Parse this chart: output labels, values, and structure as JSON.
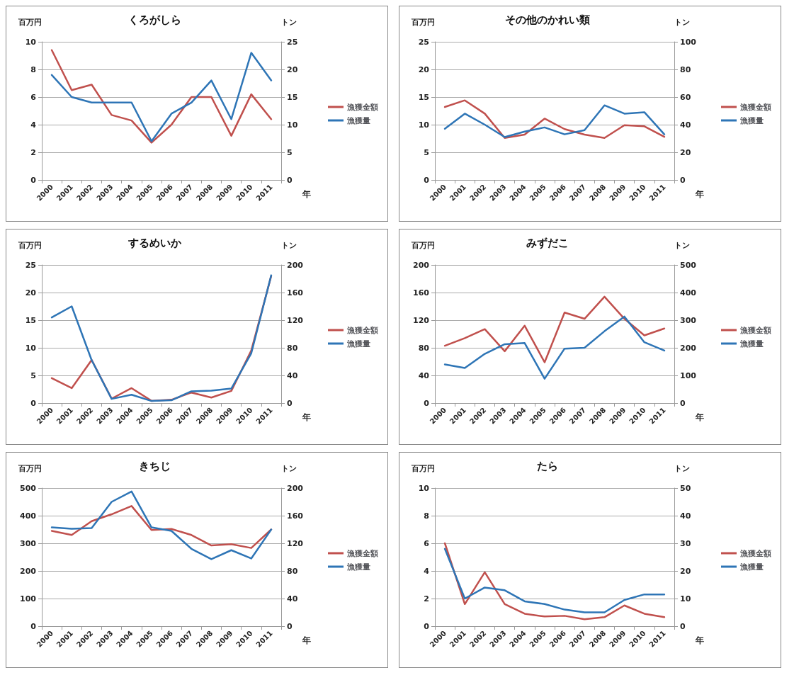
{
  "chart_data": [
    {
      "type": "line",
      "title": "くろがしら",
      "ylabel": "百万円",
      "y2label": "トン",
      "xlabel": "年",
      "categories": [
        "2000",
        "2001",
        "2002",
        "2003",
        "2004",
        "2005",
        "2006",
        "2007",
        "2008",
        "2009",
        "2010",
        "2011"
      ],
      "ylim": [
        0,
        10
      ],
      "yticks": [
        0,
        2,
        4,
        6,
        8,
        10
      ],
      "y2lim": [
        0,
        25
      ],
      "y2ticks": [
        0,
        5,
        10,
        15,
        20,
        25
      ],
      "grid": "y",
      "legend": "right",
      "marker": "none",
      "line_style": "solid",
      "series": [
        {
          "name": "漁獲金額",
          "color": "#c0504d",
          "values": [
            9.4,
            6.5,
            6.9,
            4.7,
            4.3,
            2.7,
            4.0,
            6.0,
            6.0,
            3.2,
            6.2,
            4.4
          ]
        },
        {
          "name": "漁獲量",
          "color": "#2e75b6",
          "axis": "y2",
          "values": [
            19,
            15,
            14,
            14,
            14,
            7,
            12,
            14,
            18,
            11,
            23,
            18
          ]
        }
      ]
    },
    {
      "type": "line",
      "title": "その他のかれい類",
      "ylabel": "百万円",
      "y2label": "トン",
      "xlabel": "年",
      "categories": [
        "2000",
        "2001",
        "2002",
        "2003",
        "2004",
        "2005",
        "2006",
        "2007",
        "2008",
        "2009",
        "2010",
        "2011"
      ],
      "ylim": [
        0,
        25
      ],
      "yticks": [
        0,
        5,
        10,
        15,
        20,
        25
      ],
      "y2lim": [
        0,
        100
      ],
      "y2ticks": [
        0,
        20,
        40,
        60,
        80,
        100
      ],
      "grid": "y",
      "legend": "right",
      "marker": "none",
      "line_style": "solid",
      "series": [
        {
          "name": "漁獲金額",
          "color": "#c0504d",
          "values": [
            13.2,
            14.4,
            12,
            7.6,
            8.2,
            11.1,
            9.2,
            8.2,
            7.6,
            9.9,
            9.7,
            7.8
          ]
        },
        {
          "name": "漁獲量",
          "color": "#2e75b6",
          "axis": "y2",
          "values": [
            37,
            48,
            40,
            31,
            35,
            38,
            33,
            36,
            54,
            48,
            49,
            33
          ]
        }
      ]
    },
    {
      "type": "line",
      "title": "するめいか",
      "ylabel": "百万円",
      "y2label": "トン",
      "xlabel": "年",
      "categories": [
        "2000",
        "2001",
        "2002",
        "2003",
        "2004",
        "2005",
        "2006",
        "2007",
        "2008",
        "2009",
        "2010",
        "2011"
      ],
      "ylim": [
        0,
        25
      ],
      "yticks": [
        0,
        5,
        10,
        15,
        20,
        25
      ],
      "y2lim": [
        0,
        200
      ],
      "y2ticks": [
        0,
        40,
        80,
        120,
        160,
        200
      ],
      "grid": "y",
      "legend": "right",
      "marker": "none",
      "line_style": "solid",
      "series": [
        {
          "name": "漁獲金額",
          "color": "#c0504d",
          "values": [
            4.5,
            2.7,
            7.8,
            0.8,
            2.7,
            0.4,
            0.6,
            1.9,
            1.0,
            2.2,
            9.5,
            23
          ]
        },
        {
          "name": "漁獲量",
          "color": "#2e75b6",
          "axis": "y2",
          "values": [
            124,
            140,
            62,
            6,
            12,
            3,
            4,
            17,
            18,
            21,
            72,
            185
          ]
        }
      ]
    },
    {
      "type": "line",
      "title": "みずだこ",
      "ylabel": "百万円",
      "y2label": "トン",
      "xlabel": "年",
      "categories": [
        "2000",
        "2001",
        "2002",
        "2003",
        "2004",
        "2005",
        "2006",
        "2007",
        "2008",
        "2009",
        "2010",
        "2011"
      ],
      "ylim": [
        0,
        200
      ],
      "yticks": [
        0,
        40,
        80,
        120,
        160,
        200
      ],
      "y2lim": [
        0,
        500
      ],
      "y2ticks": [
        0,
        100,
        200,
        300,
        400,
        500
      ],
      "grid": "y",
      "legend": "right",
      "marker": "none",
      "line_style": "solid",
      "series": [
        {
          "name": "漁獲金額",
          "color": "#c0504d",
          "values": [
            83,
            94,
            107,
            75,
            112,
            59,
            131,
            122,
            154,
            122,
            98,
            108
          ]
        },
        {
          "name": "漁獲量",
          "color": "#2e75b6",
          "axis": "y2",
          "values": [
            140,
            127,
            178,
            213,
            217,
            88,
            197,
            200,
            260,
            313,
            220,
            190
          ]
        }
      ]
    },
    {
      "type": "line",
      "title": "きちじ",
      "ylabel": "百万円",
      "y2label": "トン",
      "xlabel": "年",
      "categories": [
        "2000",
        "2001",
        "2002",
        "2003",
        "2004",
        "2005",
        "2006",
        "2007",
        "2008",
        "2009",
        "2010",
        "2011"
      ],
      "ylim": [
        0,
        500
      ],
      "yticks": [
        0,
        100,
        200,
        300,
        400,
        500
      ],
      "y2lim": [
        0,
        200
      ],
      "y2ticks": [
        0,
        40,
        80,
        120,
        160,
        200
      ],
      "grid": "y",
      "legend": "right",
      "marker": "none",
      "line_style": "solid",
      "series": [
        {
          "name": "漁獲金額",
          "color": "#c0504d",
          "values": [
            345,
            330,
            380,
            405,
            435,
            348,
            352,
            330,
            292,
            297,
            283,
            350
          ]
        },
        {
          "name": "漁獲量",
          "color": "#2e75b6",
          "axis": "y2",
          "values": [
            143,
            141,
            142,
            180,
            195,
            143,
            138,
            112,
            97,
            110,
            98,
            140
          ]
        }
      ]
    },
    {
      "type": "line",
      "title": "たら",
      "ylabel": "百万円",
      "y2label": "トン",
      "xlabel": "年",
      "categories": [
        "2000",
        "2001",
        "2002",
        "2003",
        "2004",
        "2005",
        "2006",
        "2007",
        "2008",
        "2009",
        "2010",
        "2011"
      ],
      "ylim": [
        0,
        10
      ],
      "yticks": [
        0,
        2,
        4,
        6,
        8,
        10
      ],
      "y2lim": [
        0,
        50
      ],
      "y2ticks": [
        0,
        10,
        20,
        30,
        40,
        50
      ],
      "grid": "y",
      "legend": "right",
      "marker": "none",
      "line_style": "solid",
      "series": [
        {
          "name": "漁獲金額",
          "color": "#c0504d",
          "values": [
            6.0,
            1.6,
            3.9,
            1.6,
            0.9,
            0.7,
            0.75,
            0.5,
            0.65,
            1.5,
            0.9,
            0.65
          ]
        },
        {
          "name": "漁獲量",
          "color": "#2e75b6",
          "axis": "y2",
          "values": [
            28,
            10,
            14,
            13,
            9,
            8,
            6,
            5,
            5,
            9.5,
            11.5,
            11.5
          ]
        }
      ]
    }
  ]
}
